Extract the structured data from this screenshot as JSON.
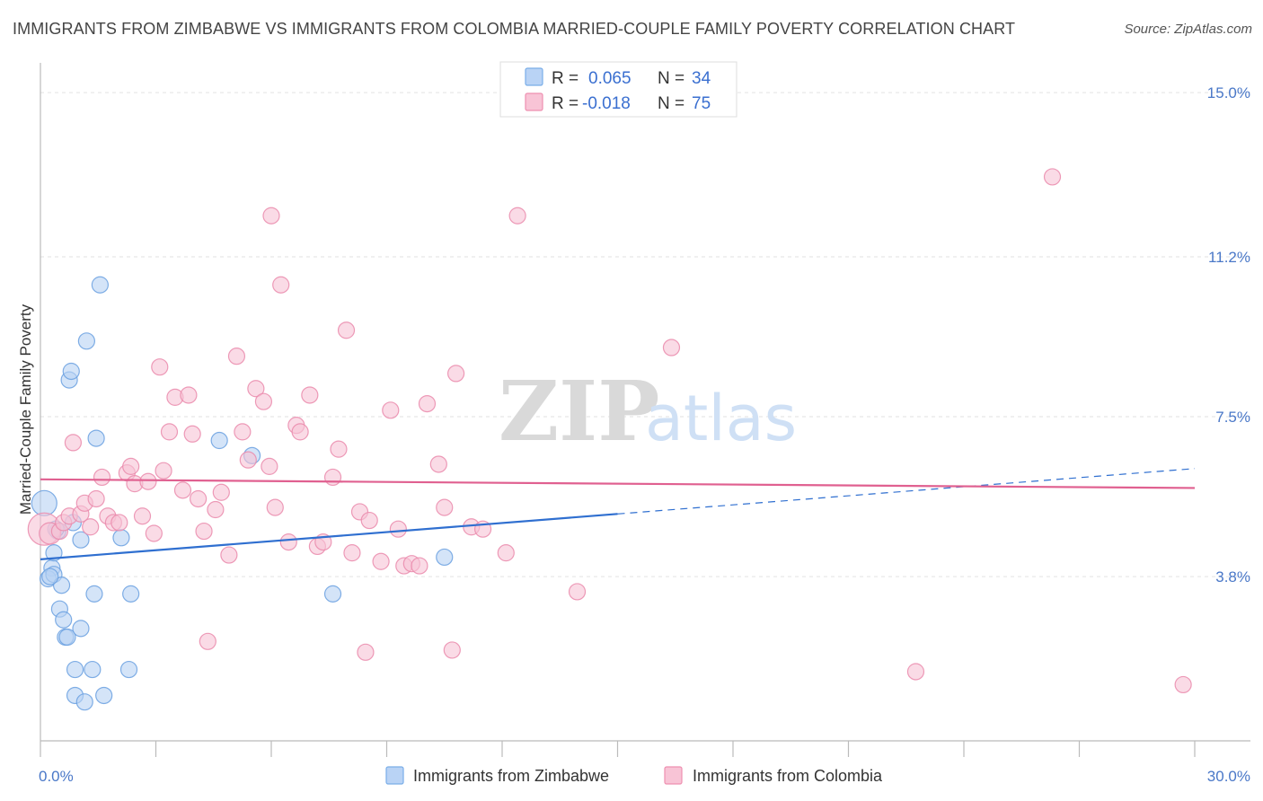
{
  "title": "IMMIGRANTS FROM ZIMBABWE VS IMMIGRANTS FROM COLOMBIA MARRIED-COUPLE FAMILY POVERTY CORRELATION CHART",
  "source": "Source: ZipAtlas.com",
  "watermark": {
    "zip": "ZIP",
    "atlas": "atlas"
  },
  "chart_data": {
    "type": "scatter",
    "ylabel": "Married-Couple Family Poverty",
    "xlim": [
      0,
      30
    ],
    "ylim": [
      0,
      15.5
    ],
    "x_tick_labels": [
      {
        "value": 0,
        "label": "0.0%"
      },
      {
        "value": 30,
        "label": "30.0%"
      }
    ],
    "y_tick_labels": [
      {
        "value": 3.8,
        "label": "3.8%"
      },
      {
        "value": 7.5,
        "label": "7.5%"
      },
      {
        "value": 11.2,
        "label": "11.2%"
      },
      {
        "value": 15.0,
        "label": "15.0%"
      }
    ],
    "legend": [
      {
        "r_label": "R =",
        "r_value": "0.065",
        "n_label": "N =",
        "n_value": "34",
        "color": "#7aaee8",
        "fill": "#b9d3f5"
      },
      {
        "r_label": "R =",
        "r_value": "-0.018",
        "n_label": "N =",
        "n_value": "75",
        "color": "#ee8fb0",
        "fill": "#f8c4d6"
      }
    ],
    "series": [
      {
        "name": "Immigrants from Zimbabwe",
        "color": "#6aa0e0",
        "fill": "#b8d2f4",
        "trend": {
          "x0": 0,
          "y0": 4.2,
          "x1": 15,
          "y1": 5.25,
          "dash_to_x": 30,
          "dash_to_y": 6.3,
          "color": "#2f6fd0"
        },
        "points": [
          [
            0.1,
            5.5,
            14
          ],
          [
            0.3,
            4.0,
            9
          ],
          [
            0.2,
            3.75,
            9
          ],
          [
            0.35,
            3.85,
            9
          ],
          [
            0.35,
            4.35,
            9
          ],
          [
            0.45,
            4.85,
            9
          ],
          [
            0.55,
            3.6,
            9
          ],
          [
            0.5,
            3.05,
            9
          ],
          [
            0.6,
            2.8,
            9
          ],
          [
            0.65,
            2.4,
            9
          ],
          [
            0.75,
            8.35,
            9
          ],
          [
            0.8,
            8.55,
            9
          ],
          [
            0.7,
            2.4,
            9
          ],
          [
            0.85,
            5.05,
            9
          ],
          [
            0.9,
            1.65,
            9
          ],
          [
            0.9,
            1.05,
            9
          ],
          [
            1.05,
            4.65,
            9
          ],
          [
            1.05,
            2.6,
            9
          ],
          [
            1.15,
            0.9,
            9
          ],
          [
            1.2,
            9.25,
            9
          ],
          [
            1.35,
            1.65,
            9
          ],
          [
            1.4,
            3.4,
            9
          ],
          [
            1.45,
            7.0,
            9
          ],
          [
            1.55,
            10.55,
            9
          ],
          [
            1.65,
            1.05,
            9
          ],
          [
            2.1,
            4.7,
            9
          ],
          [
            2.3,
            1.65,
            9
          ],
          [
            2.35,
            3.4,
            9
          ],
          [
            4.65,
            6.95,
            9
          ],
          [
            5.5,
            6.6,
            9
          ],
          [
            7.6,
            3.4,
            9
          ],
          [
            10.5,
            4.25,
            9
          ],
          [
            0.4,
            4.9,
            9
          ],
          [
            0.25,
            3.8,
            9
          ]
        ]
      },
      {
        "name": "Immigrants from Colombia",
        "color": "#ea8aac",
        "fill": "#f6c3d5",
        "trend": {
          "x0": 0,
          "y0": 6.05,
          "x1": 30,
          "y1": 5.85,
          "color": "#e06090"
        },
        "points": [
          [
            0.1,
            4.9,
            18
          ],
          [
            0.25,
            4.8,
            12
          ],
          [
            0.5,
            4.85,
            9
          ],
          [
            0.6,
            5.05,
            9
          ],
          [
            0.75,
            5.2,
            9
          ],
          [
            0.85,
            6.9,
            9
          ],
          [
            1.05,
            5.25,
            9
          ],
          [
            1.15,
            5.5,
            9
          ],
          [
            1.3,
            4.95,
            9
          ],
          [
            1.45,
            5.6,
            9
          ],
          [
            1.6,
            6.1,
            9
          ],
          [
            1.75,
            5.2,
            9
          ],
          [
            1.9,
            5.05,
            9
          ],
          [
            2.05,
            5.05,
            9
          ],
          [
            2.25,
            6.2,
            9
          ],
          [
            2.35,
            6.35,
            9
          ],
          [
            2.45,
            5.95,
            9
          ],
          [
            2.65,
            5.2,
            9
          ],
          [
            2.8,
            6.0,
            9
          ],
          [
            2.95,
            4.8,
            9
          ],
          [
            3.1,
            8.65,
            9
          ],
          [
            3.2,
            6.25,
            9
          ],
          [
            3.35,
            7.15,
            9
          ],
          [
            3.5,
            7.95,
            9
          ],
          [
            3.7,
            5.8,
            9
          ],
          [
            3.85,
            8.0,
            9
          ],
          [
            3.95,
            7.1,
            9
          ],
          [
            4.1,
            5.6,
            9
          ],
          [
            4.25,
            4.85,
            9
          ],
          [
            4.35,
            2.3,
            9
          ],
          [
            4.55,
            5.35,
            9
          ],
          [
            4.7,
            5.75,
            9
          ],
          [
            4.9,
            4.3,
            9
          ],
          [
            5.1,
            8.9,
            9
          ],
          [
            5.25,
            7.15,
            9
          ],
          [
            5.4,
            6.5,
            9
          ],
          [
            5.6,
            8.15,
            9
          ],
          [
            5.8,
            7.85,
            9
          ],
          [
            5.95,
            6.35,
            9
          ],
          [
            6.1,
            5.4,
            9
          ],
          [
            6.25,
            10.55,
            9
          ],
          [
            6.45,
            4.6,
            9
          ],
          [
            6.65,
            7.3,
            9
          ],
          [
            6.75,
            7.15,
            9
          ],
          [
            7.0,
            8.0,
            9
          ],
          [
            7.2,
            4.5,
            9
          ],
          [
            7.35,
            4.6,
            9
          ],
          [
            7.6,
            6.1,
            9
          ],
          [
            7.75,
            6.75,
            9
          ],
          [
            7.95,
            9.5,
            9
          ],
          [
            8.1,
            4.35,
            9
          ],
          [
            8.3,
            5.3,
            9
          ],
          [
            8.45,
            2.05,
            9
          ],
          [
            8.55,
            5.1,
            9
          ],
          [
            8.85,
            4.15,
            9
          ],
          [
            9.1,
            7.65,
            9
          ],
          [
            9.3,
            4.9,
            9
          ],
          [
            9.45,
            4.05,
            9
          ],
          [
            9.65,
            4.1,
            9
          ],
          [
            9.85,
            4.05,
            9
          ],
          [
            10.05,
            7.8,
            9
          ],
          [
            10.35,
            6.4,
            9
          ],
          [
            10.5,
            5.4,
            9
          ],
          [
            10.7,
            2.1,
            9
          ],
          [
            10.8,
            8.5,
            9
          ],
          [
            11.2,
            4.95,
            9
          ],
          [
            11.5,
            4.9,
            9
          ],
          [
            12.1,
            4.35,
            9
          ],
          [
            12.4,
            12.15,
            9
          ],
          [
            6.0,
            12.15,
            9
          ],
          [
            13.95,
            3.45,
            9
          ],
          [
            16.4,
            9.1,
            9
          ],
          [
            22.75,
            1.6,
            9
          ],
          [
            26.3,
            13.05,
            9
          ],
          [
            29.7,
            1.3,
            9
          ]
        ]
      }
    ]
  }
}
